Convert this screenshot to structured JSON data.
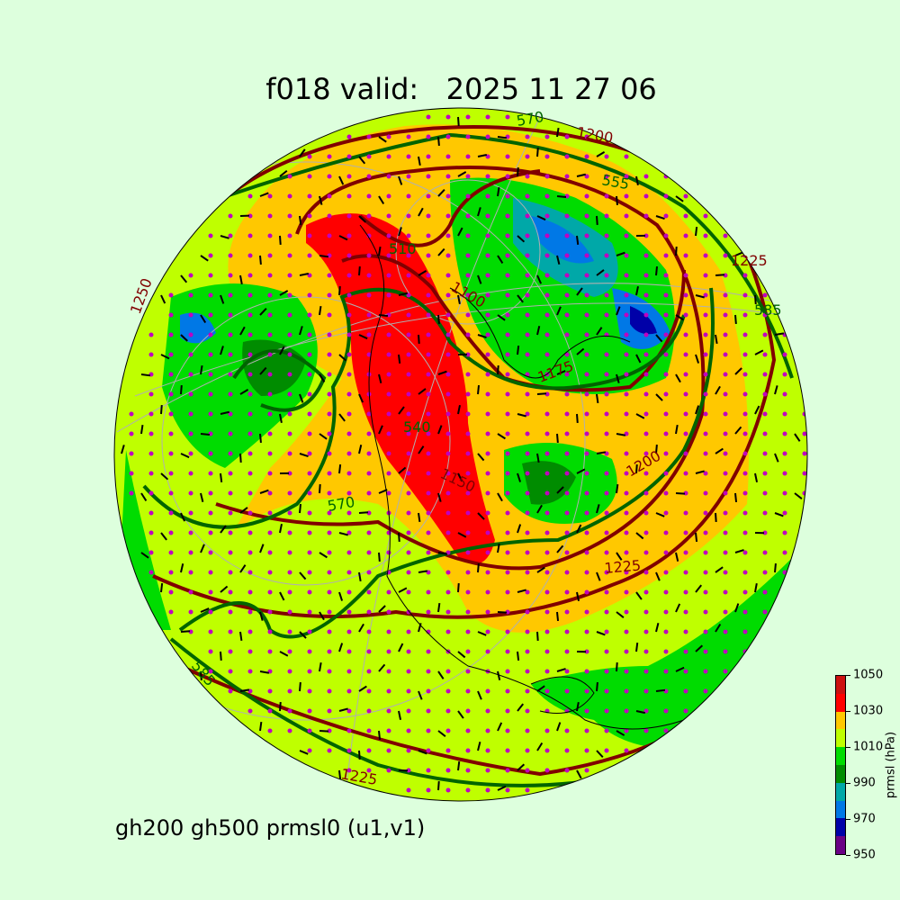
{
  "title": "f018 valid:   2025 11 27 06",
  "subtitle": "gh200 gh500 prmsl0 (u1,v1)",
  "colorbar": {
    "label": "prmsl (hPa)",
    "ticks": [
      "950",
      "970",
      "990",
      "1010",
      "1030",
      "1050"
    ],
    "range": [
      950,
      1050
    ],
    "colors": [
      "#6a0085",
      "#0000a8",
      "#0078e6",
      "#00a8a8",
      "#008c00",
      "#00dc00",
      "#bfff00",
      "#ffc800",
      "#ff0000",
      "#cc1010"
    ]
  },
  "map": {
    "projection": "orthographic",
    "gh200_contour_color": "#800000",
    "gh500_contour_color": "#006400",
    "wind_marker_color": "#c000c0",
    "contour_labels": [
      {
        "text": "1200",
        "field": "gh200"
      },
      {
        "text": "570",
        "field": "gh500"
      },
      {
        "text": "555",
        "field": "gh500"
      },
      {
        "text": "1100",
        "field": "gh200"
      },
      {
        "text": "510",
        "field": "gh500"
      },
      {
        "text": "1225",
        "field": "gh200"
      },
      {
        "text": "585",
        "field": "gh500"
      },
      {
        "text": "1250",
        "field": "gh200"
      },
      {
        "text": "540",
        "field": "gh500"
      },
      {
        "text": "1150",
        "field": "gh200"
      },
      {
        "text": "570",
        "field": "gh500"
      },
      {
        "text": "1200",
        "field": "gh200"
      },
      {
        "text": "1225",
        "field": "gh200"
      },
      {
        "text": "585",
        "field": "gh500"
      },
      {
        "text": "1225",
        "field": "gh200"
      },
      {
        "text": "1175",
        "field": "gh200"
      }
    ]
  }
}
